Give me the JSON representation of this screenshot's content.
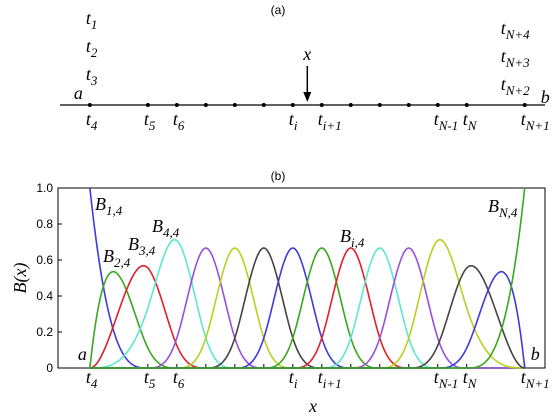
{
  "chart_data": {
    "type": "bspline",
    "panel_a_label": "(a)",
    "panel_b_label": "(b)",
    "knots": [
      {
        "value": 0,
        "label": {
          "base": "t",
          "sub": "4"
        }
      },
      {
        "value": 2,
        "label": {
          "base": "t",
          "sub": "5"
        }
      },
      {
        "value": 3,
        "label": {
          "base": "t",
          "sub": "6"
        }
      },
      {
        "value": 4,
        "label": null
      },
      {
        "value": 5,
        "label": null
      },
      {
        "value": 6,
        "label": null
      },
      {
        "value": 7,
        "label": {
          "base": "t",
          "sub": "i"
        }
      },
      {
        "value": 8,
        "label": {
          "base": "t",
          "sub": "i+1"
        }
      },
      {
        "value": 9,
        "label": null
      },
      {
        "value": 10,
        "label": null
      },
      {
        "value": 11,
        "label": null
      },
      {
        "value": 12,
        "label": {
          "base": "t",
          "sub": "N-1"
        }
      },
      {
        "value": 13,
        "label": {
          "base": "t",
          "sub": "N"
        }
      },
      {
        "value": 15,
        "label": {
          "base": "t",
          "sub": "N+1"
        }
      }
    ],
    "start_labels": [
      {
        "base": "t",
        "sub": "1"
      },
      {
        "base": "t",
        "sub": "2"
      },
      {
        "base": "t",
        "sub": "3"
      }
    ],
    "end_labels": [
      {
        "base": "t",
        "sub": "N+4"
      },
      {
        "base": "t",
        "sub": "N+3"
      },
      {
        "base": "t",
        "sub": "N+2"
      }
    ],
    "end_a": "a",
    "end_b": "b",
    "pointer_label": "x",
    "pointer_x": 7.5,
    "xlabel": "x",
    "ylabel": "B(x)",
    "xlim": [
      -1.1,
      15.7
    ],
    "ylim": [
      0,
      1.0
    ],
    "yticks": [
      0,
      0.2,
      0.4,
      0.6,
      0.8,
      {
        "value": 1,
        "label": "1.0"
      }
    ],
    "series": [
      {
        "color": "#3c3cdc"
      },
      {
        "color": "#3aa81e"
      },
      {
        "color": "#e0202a"
      },
      {
        "color": "#5ce8d0"
      },
      {
        "color": "#9a4fd8"
      },
      {
        "color": "#b8d020"
      },
      {
        "color": "#444444"
      },
      {
        "color": "#3c3cdc"
      },
      {
        "color": "#3aa81e"
      },
      {
        "color": "#e0202a"
      },
      {
        "color": "#5ce8d0"
      },
      {
        "color": "#9a4fd8"
      },
      {
        "color": "#b8d020"
      },
      {
        "color": "#444444"
      },
      {
        "color": "#3c3cdc"
      },
      {
        "color": "#3aa81e"
      }
    ],
    "curve_labels": [
      {
        "base": "B",
        "sub": "1,4",
        "color": "#3c3cdc"
      },
      {
        "base": "B",
        "sub": "2,4",
        "color": "#3aa81e"
      },
      {
        "base": "B",
        "sub": "3,4",
        "color": "#e0202a"
      },
      {
        "base": "B",
        "sub": "4,4",
        "color": "#5ce8d0"
      },
      {
        "base": "B",
        "sub": "i,4",
        "color": "#e0202a"
      },
      {
        "base": "B",
        "sub": "N,4",
        "color": "#3aa81e"
      }
    ]
  }
}
